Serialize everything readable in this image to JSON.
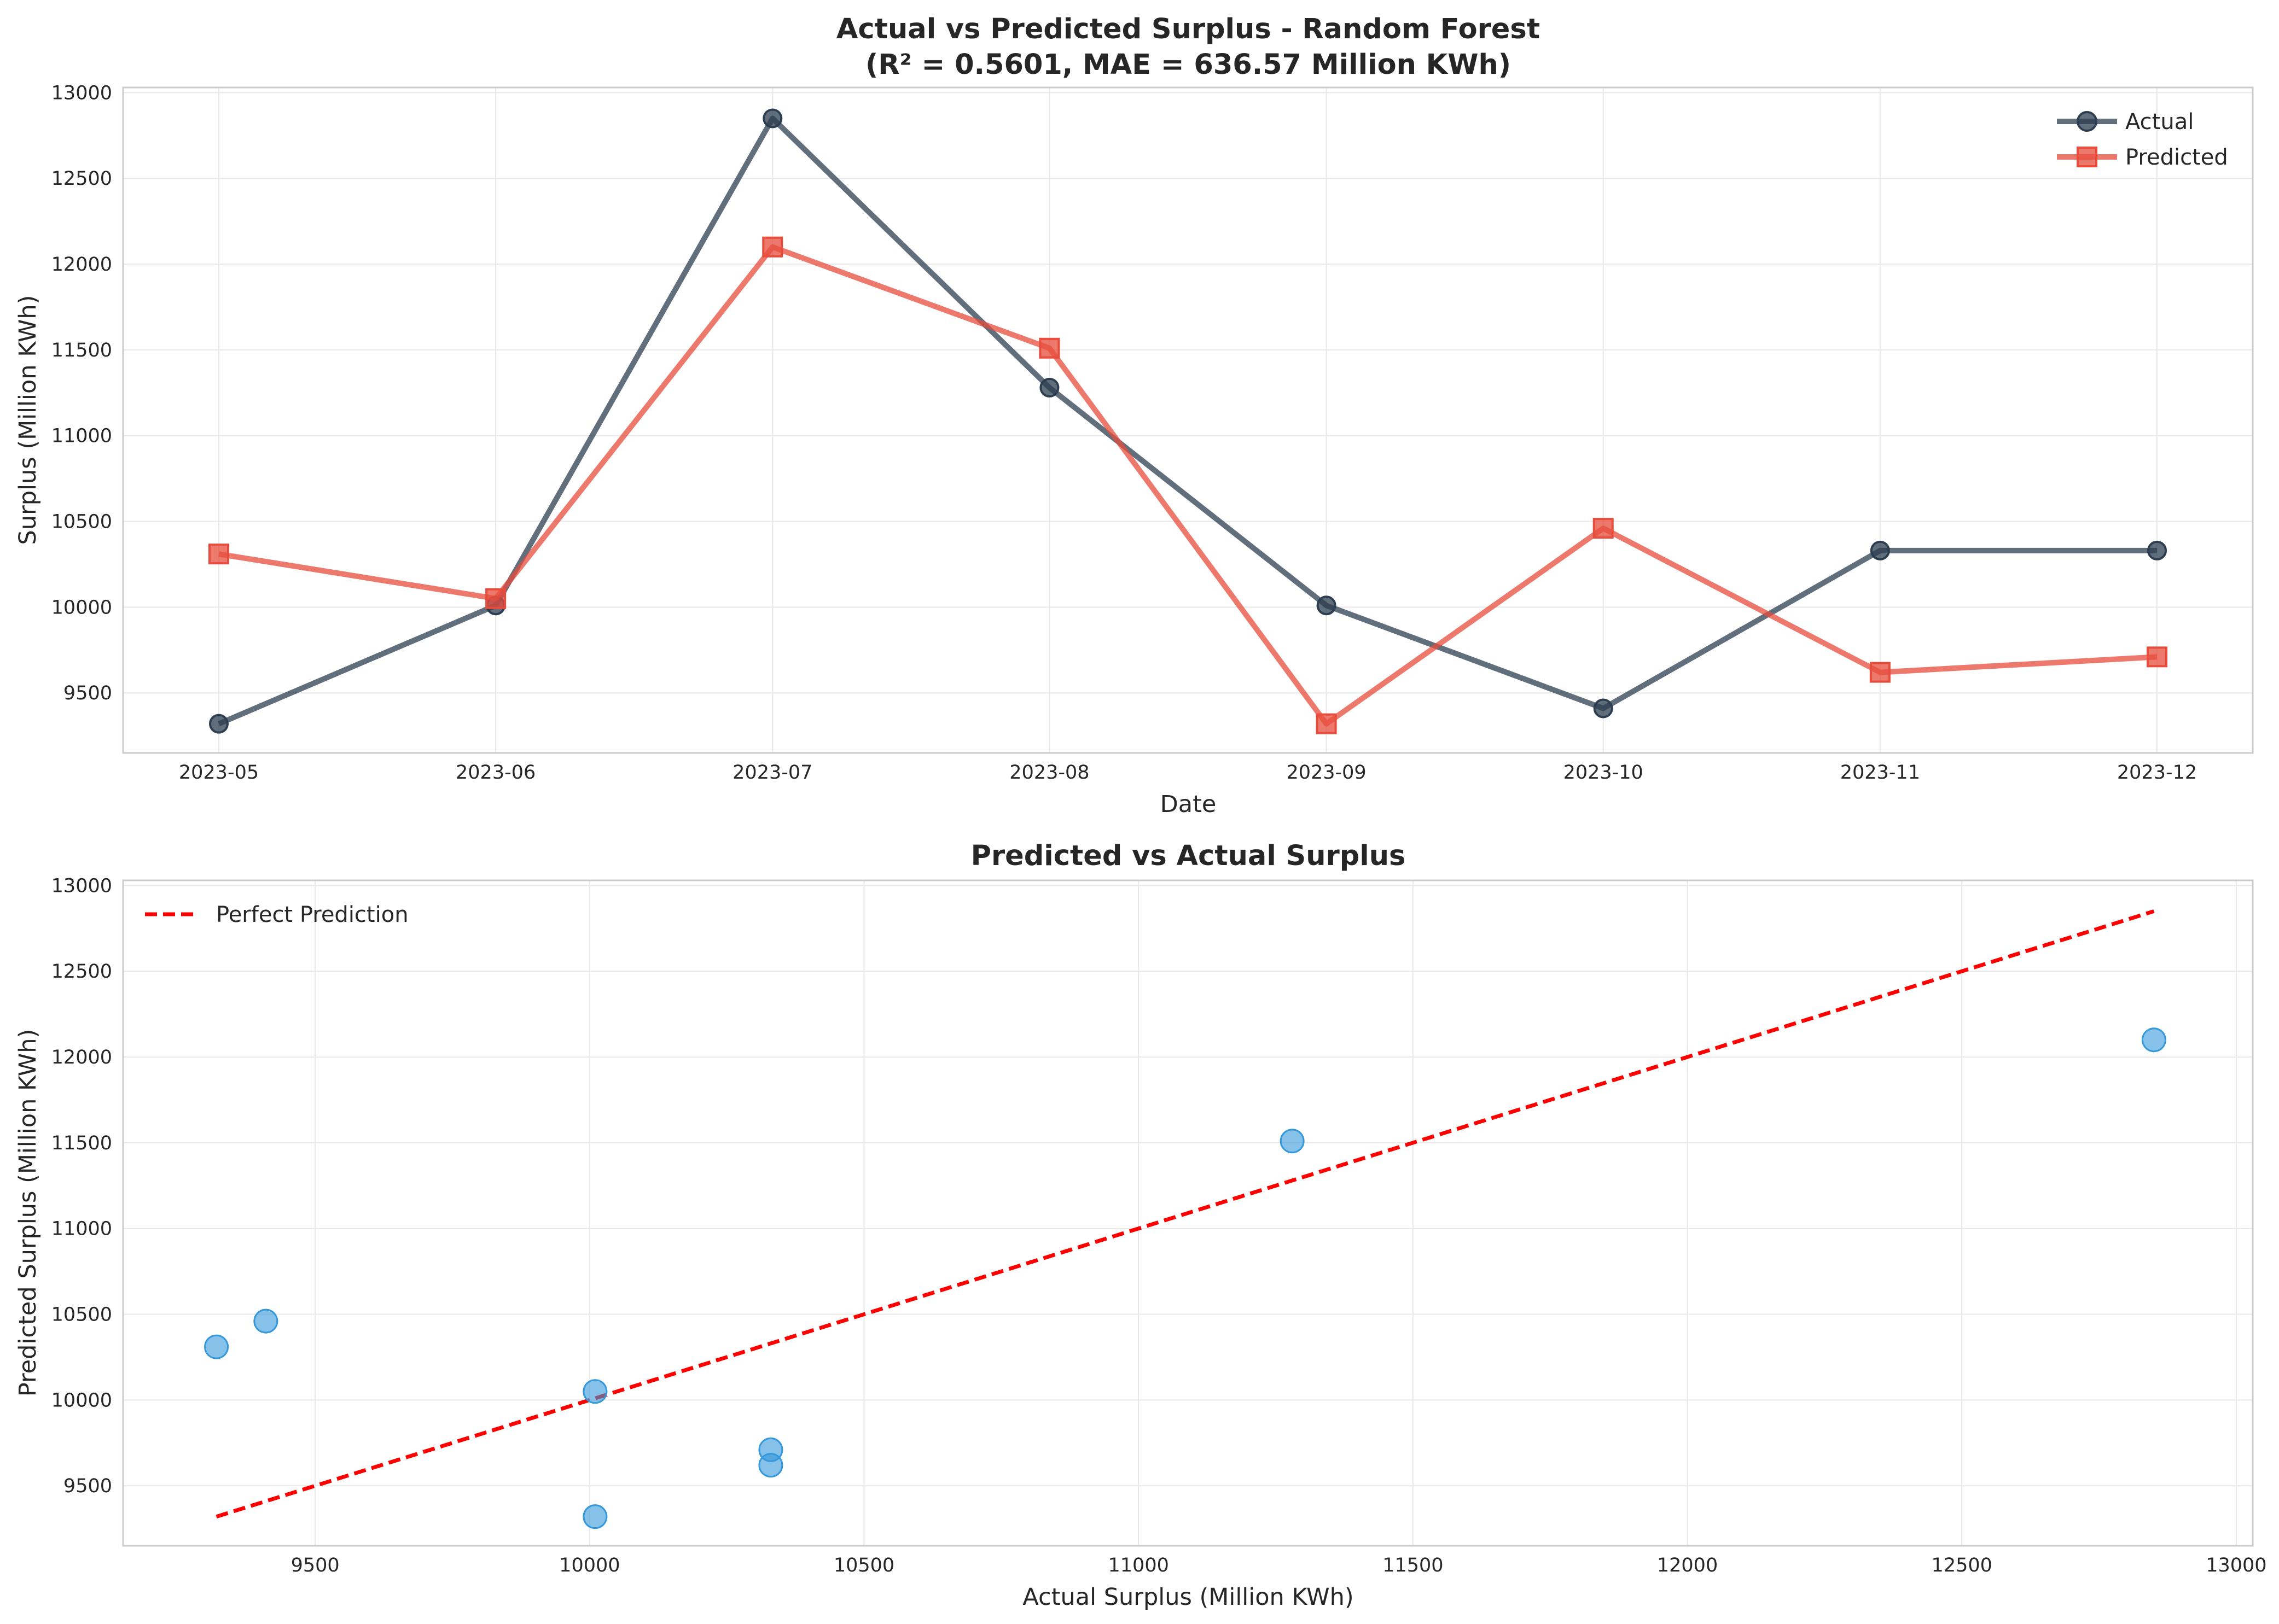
{
  "chart_data": [
    {
      "type": "line",
      "title": "Actual vs Predicted Surplus - Random Forest",
      "subtitle": "(R² = 0.5601, MAE = 636.57 Million KWh)",
      "xlabel": "Date",
      "ylabel": "Surplus (Million KWh)",
      "categories": [
        "2023-05",
        "2023-06",
        "2023-07",
        "2023-08",
        "2023-09",
        "2023-10",
        "2023-11",
        "2023-12"
      ],
      "ylim": [
        9150,
        13030
      ],
      "yticks": [
        9500,
        10000,
        10500,
        11000,
        11500,
        12000,
        12500,
        13000
      ],
      "grid": true,
      "legend_position": "top-right",
      "series": [
        {
          "name": "Actual",
          "marker": "circle",
          "color": "#2c3e50",
          "values": [
            9320,
            10010,
            12850,
            11280,
            10010,
            9410,
            10330,
            10330
          ]
        },
        {
          "name": "Predicted",
          "marker": "square",
          "color": "#e74c3c",
          "values": [
            10310,
            10050,
            12100,
            11510,
            9320,
            10460,
            9620,
            9710
          ]
        }
      ]
    },
    {
      "type": "scatter",
      "title": "Predicted vs Actual Surplus",
      "xlabel": "Actual Surplus (Million KWh)",
      "ylabel": "Predicted Surplus (Million KWh)",
      "xlim": [
        9150,
        13030
      ],
      "ylim": [
        9150,
        13030
      ],
      "xticks": [
        9500,
        10000,
        10500,
        11000,
        11500,
        12000,
        12500,
        13000
      ],
      "yticks": [
        9500,
        10000,
        10500,
        11000,
        11500,
        12000,
        12500,
        13000
      ],
      "grid": true,
      "legend_position": "top-left",
      "point_color": "#3498db",
      "points": [
        {
          "x": 9320,
          "y": 10310
        },
        {
          "x": 10010,
          "y": 10050
        },
        {
          "x": 12850,
          "y": 12100
        },
        {
          "x": 11280,
          "y": 11510
        },
        {
          "x": 10010,
          "y": 9320
        },
        {
          "x": 9410,
          "y": 10460
        },
        {
          "x": 10330,
          "y": 9620
        },
        {
          "x": 10330,
          "y": 9710
        }
      ],
      "reference_line": {
        "name": "Perfect Prediction",
        "color": "#ff0000",
        "style": "dashed",
        "x": [
          9320,
          12850
        ],
        "y": [
          9320,
          12850
        ]
      }
    }
  ]
}
